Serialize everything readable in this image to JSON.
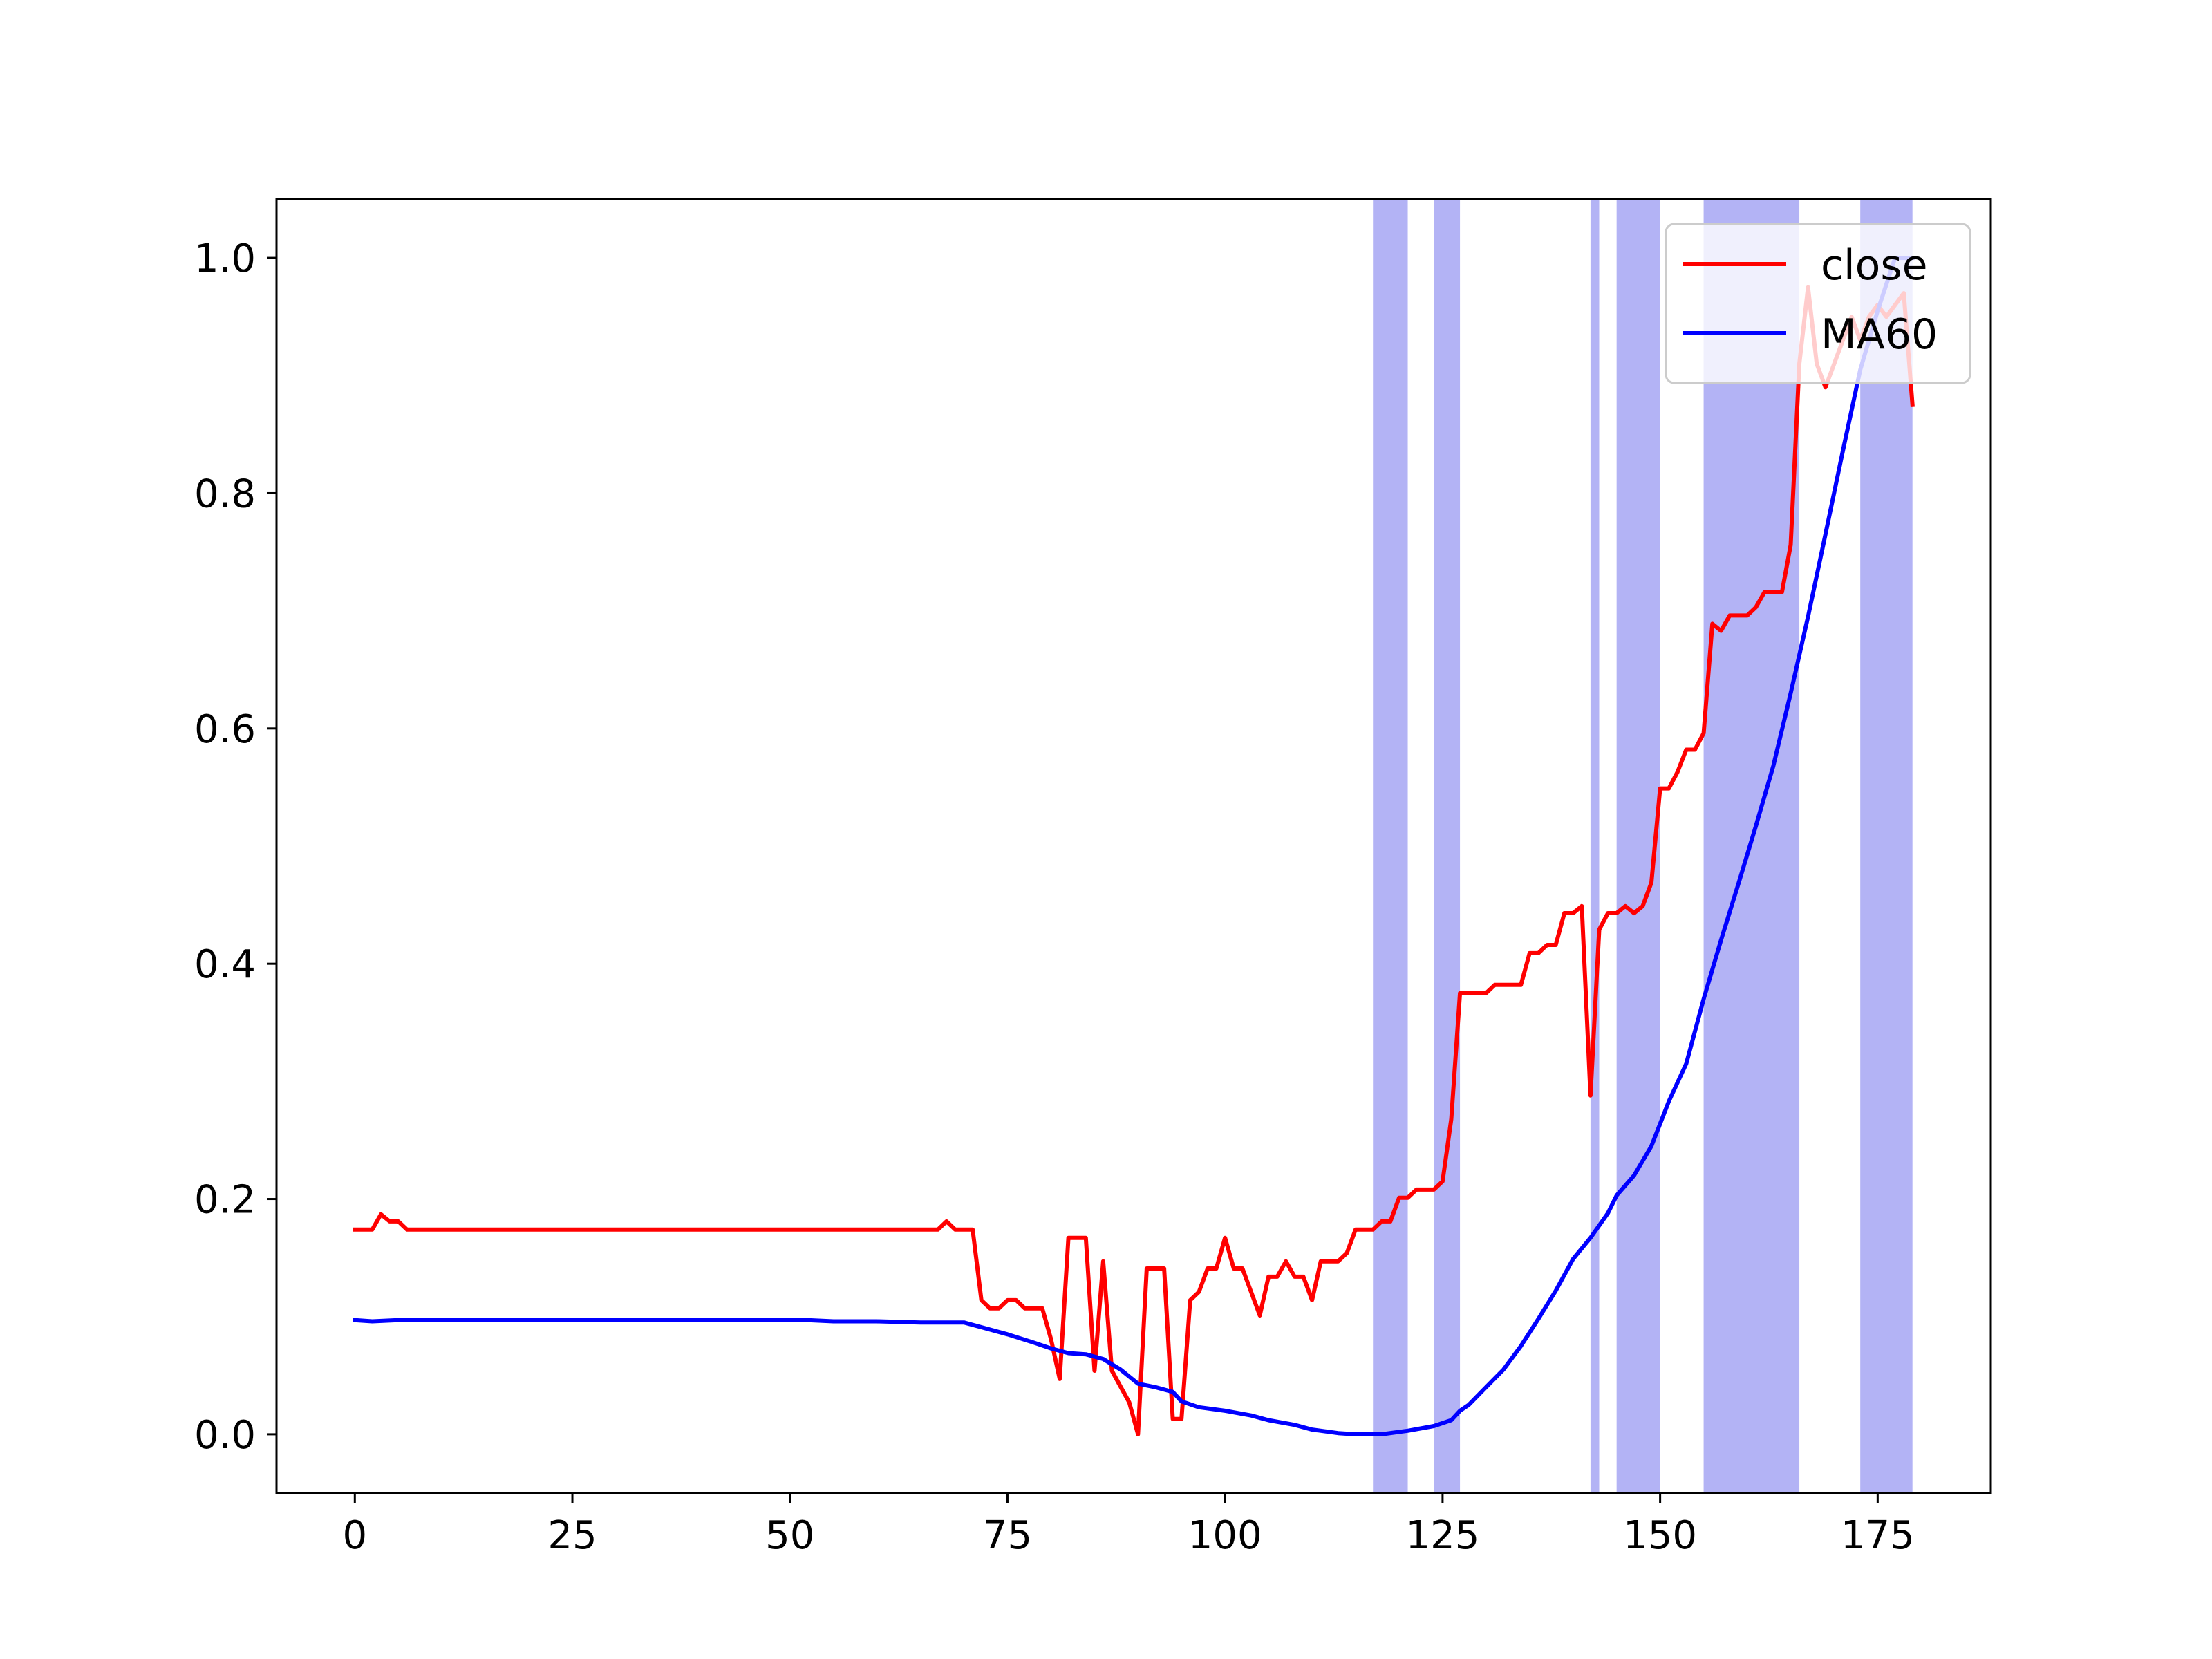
{
  "chart_data": {
    "type": "line",
    "title": "",
    "xlabel": "",
    "ylabel": "",
    "xlim": [
      -9,
      188
    ],
    "ylim": [
      -0.05,
      1.05
    ],
    "xticks": [
      0,
      25,
      50,
      75,
      100,
      125,
      150,
      175
    ],
    "yticks": [
      0.0,
      0.2,
      0.4,
      0.6,
      0.8,
      1.0
    ],
    "xtick_labels": [
      "0",
      "25",
      "50",
      "75",
      "100",
      "125",
      "150",
      "175"
    ],
    "ytick_labels": [
      "0.0",
      "0.2",
      "0.4",
      "0.6",
      "0.8",
      "1.0"
    ],
    "grid": false,
    "legend_position": "top-right",
    "shaded_spans": [
      [
        117,
        121
      ],
      [
        124,
        127
      ],
      [
        142,
        143
      ],
      [
        145,
        150
      ],
      [
        155,
        166
      ],
      [
        173,
        179
      ]
    ],
    "shade_color": "#b3b3f5",
    "series": [
      {
        "name": "close",
        "color": "#ff0000",
        "x": [
          0,
          2,
          3,
          4,
          5,
          6,
          67,
          68,
          69,
          71,
          72,
          73,
          74,
          75,
          76,
          77,
          78,
          79,
          80,
          81,
          82,
          83,
          84,
          85,
          86,
          87,
          89,
          90,
          91,
          93,
          94,
          95,
          96,
          97,
          98,
          99,
          100,
          101,
          102,
          104,
          105,
          106,
          107,
          108,
          109,
          110,
          111,
          113,
          114,
          115,
          117,
          118,
          119,
          120,
          121,
          122,
          124,
          125,
          126,
          127,
          128,
          130,
          131,
          133,
          134,
          135,
          136,
          137,
          138,
          139,
          140,
          141,
          142,
          143,
          144,
          145,
          146,
          147,
          148,
          149,
          150,
          151,
          152,
          153,
          154,
          155,
          156,
          157,
          158,
          159,
          160,
          161,
          162,
          163,
          164,
          165,
          166,
          167,
          168,
          169,
          170,
          171,
          172,
          173,
          174,
          175,
          176,
          177,
          178,
          179
        ],
        "y": [
          0.174,
          0.174,
          0.187,
          0.181,
          0.181,
          0.174,
          0.174,
          0.181,
          0.174,
          0.174,
          0.114,
          0.107,
          0.107,
          0.114,
          0.114,
          0.107,
          0.107,
          0.107,
          0.081,
          0.047,
          0.167,
          0.167,
          0.167,
          0.054,
          0.147,
          0.054,
          0.027,
          0.0,
          0.141,
          0.141,
          0.013,
          0.013,
          0.114,
          0.121,
          0.141,
          0.141,
          0.167,
          0.141,
          0.141,
          0.101,
          0.134,
          0.134,
          0.147,
          0.134,
          0.134,
          0.114,
          0.147,
          0.147,
          0.154,
          0.174,
          0.174,
          0.181,
          0.181,
          0.201,
          0.201,
          0.208,
          0.208,
          0.215,
          0.268,
          0.375,
          0.375,
          0.375,
          0.382,
          0.382,
          0.382,
          0.409,
          0.409,
          0.416,
          0.416,
          0.443,
          0.443,
          0.449,
          0.288,
          0.429,
          0.443,
          0.443,
          0.449,
          0.443,
          0.449,
          0.469,
          0.549,
          0.549,
          0.563,
          0.582,
          0.582,
          0.596,
          0.689,
          0.683,
          0.696,
          0.696,
          0.696,
          0.703,
          0.716,
          0.716,
          0.716,
          0.756,
          0.91,
          0.975,
          0.91,
          0.89,
          0.91,
          0.93,
          0.95,
          0.93,
          0.95,
          0.96,
          0.95,
          0.96,
          0.97,
          0.875
        ]
      },
      {
        "name": "MA60",
        "color": "#0000ff",
        "x": [
          0,
          2,
          5,
          10,
          20,
          30,
          40,
          52,
          55,
          60,
          65,
          70,
          72,
          75,
          78,
          80,
          82,
          84,
          86,
          88,
          90,
          92,
          94,
          95,
          97,
          100,
          103,
          105,
          108,
          110,
          113,
          115,
          118,
          121,
          124,
          126,
          127,
          128,
          130,
          132,
          134,
          136,
          138,
          140,
          142,
          144,
          145,
          147,
          149,
          151,
          153,
          155,
          157,
          159,
          161,
          163,
          165,
          167,
          169,
          171,
          173,
          175,
          177,
          179
        ],
        "y": [
          0.097,
          0.096,
          0.097,
          0.097,
          0.097,
          0.097,
          0.097,
          0.097,
          0.096,
          0.096,
          0.095,
          0.095,
          0.091,
          0.085,
          0.078,
          0.073,
          0.069,
          0.068,
          0.064,
          0.055,
          0.043,
          0.04,
          0.036,
          0.028,
          0.023,
          0.02,
          0.016,
          0.012,
          0.008,
          0.004,
          0.001,
          0.0,
          0.0,
          0.003,
          0.007,
          0.012,
          0.02,
          0.025,
          0.04,
          0.055,
          0.075,
          0.098,
          0.122,
          0.149,
          0.167,
          0.188,
          0.203,
          0.22,
          0.245,
          0.283,
          0.315,
          0.37,
          0.42,
          0.468,
          0.517,
          0.568,
          0.63,
          0.695,
          0.765,
          0.836,
          0.905,
          0.955,
          1.0,
          1.0
        ]
      }
    ]
  }
}
